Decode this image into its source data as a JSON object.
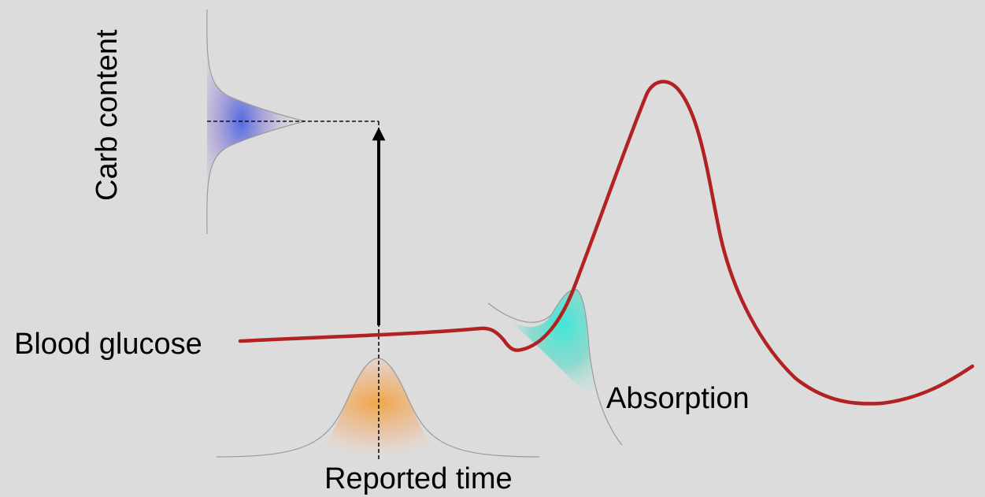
{
  "labels": {
    "carb_content": "Carb content",
    "blood_glucose": "Blood glucose",
    "absorption": "Absorption",
    "reported_time": "Reported time"
  },
  "colors": {
    "background": "#dcdcdc",
    "glucose_curve": "#b22222",
    "carb_distribution": "#4a63e0",
    "time_distribution": "#f0a340",
    "absorption_distribution": "#3fe8d8",
    "arrow": "#000000"
  }
}
